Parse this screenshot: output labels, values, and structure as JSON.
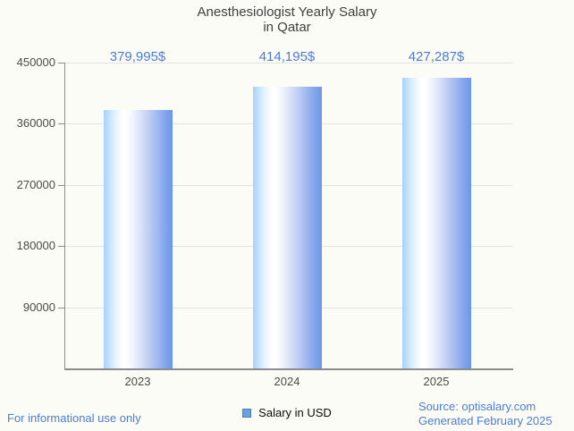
{
  "title": {
    "line1": "Anesthesiologist Yearly Salary",
    "line2": "in Qatar"
  },
  "chart_data": {
    "type": "bar",
    "title": "Anesthesiologist Yearly Salary in Qatar",
    "categories": [
      "2023",
      "2024",
      "2025"
    ],
    "values": [
      379995,
      414195,
      427287
    ],
    "value_labels": [
      "379,995$",
      "414,195$",
      "427,287$"
    ],
    "series": [
      {
        "name": "Salary in USD",
        "values": [
          379995,
          414195,
          427287
        ]
      }
    ],
    "xlabel": "",
    "ylabel": "",
    "ylim": [
      0,
      450000
    ],
    "yticks": [
      90000,
      180000,
      270000,
      360000,
      450000
    ],
    "grid": true,
    "legend_position": "bottom"
  },
  "legend": {
    "label": "Salary in USD"
  },
  "footer": {
    "left": "For informational use only",
    "source": "Source: optisalary.com",
    "generated": "Generated February 2025"
  },
  "colors": {
    "background": "#fcfcf7",
    "title_text": "#3f3f3f",
    "tick_text": "#4a4a4a",
    "gridline": "#e3e3e3",
    "axis": "#8c8c8c",
    "value_label_text": "#4d7dd1",
    "footer_text": "#4d7dd1",
    "bar_gradient_left": "#a5d2fb",
    "bar_gradient_highlight": "#ffffff",
    "bar_gradient_right": "#6d96e8",
    "legend_swatch_fill": "#6aa2e2",
    "legend_swatch_border": "#4c7cc0"
  }
}
